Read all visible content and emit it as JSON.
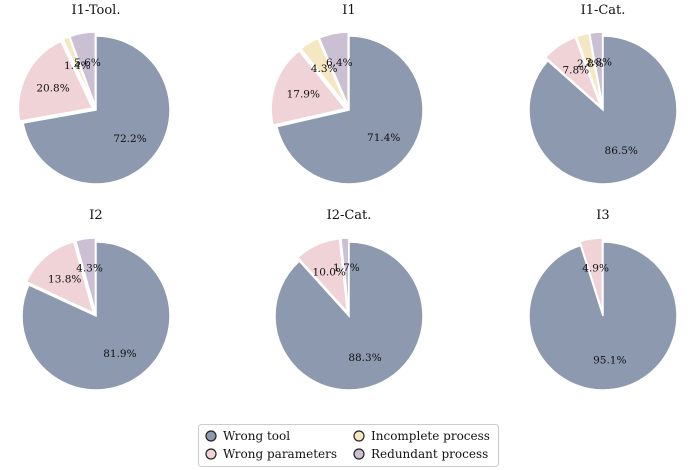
{
  "colors": {
    "wrong_tool": "#8d99ae",
    "wrong_parameters": "#efd3d7",
    "incomplete_process": "#f5e7c1",
    "redundant_process": "#cbc0d3"
  },
  "legend": {
    "wrong_tool": "Wrong tool",
    "wrong_parameters": "Wrong parameters",
    "incomplete_process": "Incomplete process",
    "redundant_process": "Redundant process"
  },
  "chart_data": [
    {
      "type": "pie",
      "title": "I1-Tool.",
      "slices": [
        {
          "category": "wrong_tool",
          "value": 72.2,
          "label": "72.2%"
        },
        {
          "category": "wrong_parameters",
          "value": 20.8,
          "label": "20.8%"
        },
        {
          "category": "incomplete_process",
          "value": 1.4,
          "label": "1.4%"
        },
        {
          "category": "redundant_process",
          "value": 5.6,
          "label": "5.6%"
        }
      ]
    },
    {
      "type": "pie",
      "title": "I1",
      "slices": [
        {
          "category": "wrong_tool",
          "value": 71.4,
          "label": "71.4%"
        },
        {
          "category": "wrong_parameters",
          "value": 17.9,
          "label": "17.9%"
        },
        {
          "category": "incomplete_process",
          "value": 4.3,
          "label": "4.3%"
        },
        {
          "category": "redundant_process",
          "value": 6.4,
          "label": "6.4%"
        }
      ]
    },
    {
      "type": "pie",
      "title": "I1-Cat.",
      "slices": [
        {
          "category": "wrong_tool",
          "value": 86.5,
          "label": "86.5%"
        },
        {
          "category": "wrong_parameters",
          "value": 7.8,
          "label": "7.8%"
        },
        {
          "category": "incomplete_process",
          "value": 2.8,
          "label": "2.8%"
        },
        {
          "category": "redundant_process",
          "value": 2.8,
          "label": "2.8%"
        }
      ]
    },
    {
      "type": "pie",
      "title": "I2",
      "slices": [
        {
          "category": "wrong_tool",
          "value": 81.9,
          "label": "81.9%"
        },
        {
          "category": "wrong_parameters",
          "value": 13.8,
          "label": "13.8%"
        },
        {
          "category": "incomplete_process",
          "value": 0,
          "label": ""
        },
        {
          "category": "redundant_process",
          "value": 4.3,
          "label": "4.3%"
        }
      ]
    },
    {
      "type": "pie",
      "title": "I2-Cat.",
      "slices": [
        {
          "category": "wrong_tool",
          "value": 88.3,
          "label": "88.3%"
        },
        {
          "category": "wrong_parameters",
          "value": 10.0,
          "label": "10.0%"
        },
        {
          "category": "incomplete_process",
          "value": 0,
          "label": ""
        },
        {
          "category": "redundant_process",
          "value": 1.7,
          "label": "1.7%"
        }
      ]
    },
    {
      "type": "pie",
      "title": "I3",
      "slices": [
        {
          "category": "wrong_tool",
          "value": 95.1,
          "label": "95.1%"
        },
        {
          "category": "wrong_parameters",
          "value": 4.9,
          "label": "4.9%"
        },
        {
          "category": "incomplete_process",
          "value": 0,
          "label": ""
        },
        {
          "category": "redundant_process",
          "value": 0,
          "label": ""
        }
      ]
    }
  ]
}
